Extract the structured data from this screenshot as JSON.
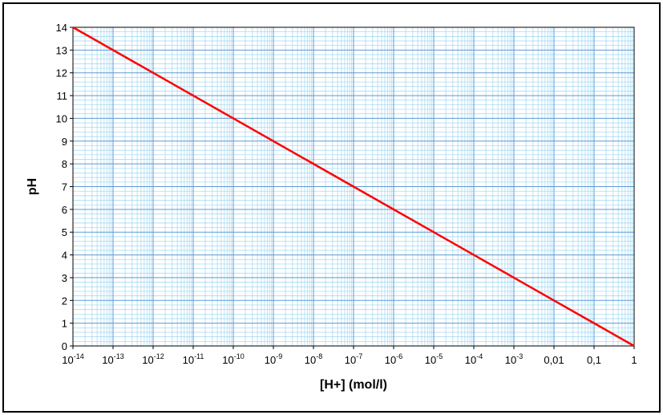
{
  "chart_data": {
    "type": "line",
    "title": "",
    "xlabel": "[H+] (mol/l)",
    "ylabel": "pH",
    "xscale": "log",
    "xlim": [
      1e-14,
      1
    ],
    "ylim": [
      0,
      14
    ],
    "grid": true,
    "legend": "none",
    "colors": {
      "line": "#ff0000",
      "grid_major": "#5b9bd5",
      "grid_minor": "#9dd6f0",
      "background": "#ffffff"
    },
    "x_ticks": [
      {
        "base": "10",
        "exp": "-14"
      },
      {
        "base": "10",
        "exp": "-13"
      },
      {
        "base": "10",
        "exp": "-12"
      },
      {
        "base": "10",
        "exp": "-11"
      },
      {
        "base": "10",
        "exp": "-10"
      },
      {
        "base": "10",
        "exp": "-9"
      },
      {
        "base": "10",
        "exp": "-8"
      },
      {
        "base": "10",
        "exp": "-7"
      },
      {
        "base": "10",
        "exp": "-6"
      },
      {
        "base": "10",
        "exp": "-5"
      },
      {
        "base": "10",
        "exp": "-4"
      },
      {
        "base": "10",
        "exp": "-3"
      },
      {
        "base": "0,01",
        "exp": ""
      },
      {
        "base": "0,1",
        "exp": ""
      },
      {
        "base": "1",
        "exp": ""
      }
    ],
    "y_ticks": [
      "0",
      "1",
      "2",
      "3",
      "4",
      "5",
      "6",
      "7",
      "8",
      "9",
      "10",
      "11",
      "12",
      "13",
      "14"
    ],
    "series": [
      {
        "x": [
          1e-14,
          1e-13,
          1e-12,
          1e-11,
          1e-10,
          1e-09,
          1e-08,
          1e-07,
          1e-06,
          1e-05,
          0.0001,
          0.001,
          0.01,
          0.1,
          1
        ],
        "values": [
          14,
          13,
          12,
          11,
          10,
          9,
          8,
          7,
          6,
          5,
          4,
          3,
          2,
          1,
          0
        ]
      }
    ]
  }
}
